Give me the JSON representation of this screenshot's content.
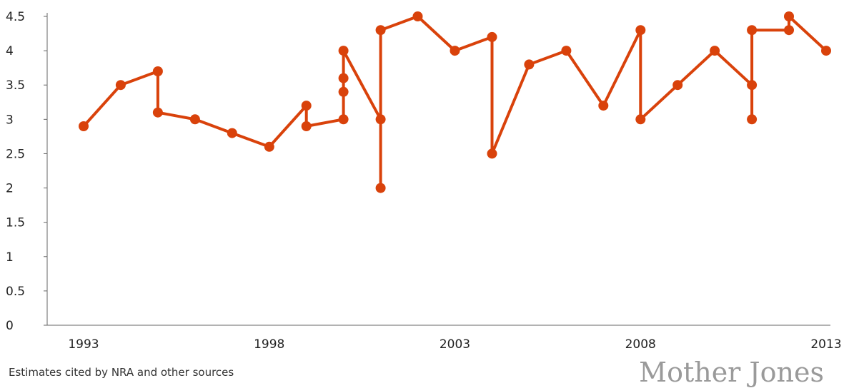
{
  "chart_data": {
    "type": "line",
    "title": "",
    "xlabel": "",
    "ylabel": "",
    "xlim": [
      1993,
      2013
    ],
    "ylim": [
      0,
      4.5
    ],
    "x_ticks": [
      "1993",
      "1998",
      "2003",
      "2008",
      "2013"
    ],
    "y_ticks": [
      "0",
      "0.5",
      "1",
      "1.5",
      "2",
      "2.5",
      "3",
      "3.5",
      "4",
      "4.5"
    ],
    "grid": false,
    "color": "#d9420b",
    "series": [
      {
        "x": [
          1993,
          1994,
          1995,
          1995,
          1996,
          1997,
          1998,
          1999,
          1999,
          2000,
          2000,
          2000,
          2000,
          2001,
          2001,
          2001,
          2002,
          2003,
          2004,
          2004,
          2005,
          2006,
          2007,
          2008,
          2008,
          2009,
          2010,
          2011,
          2011,
          2011,
          2012,
          2012,
          2013
        ],
        "y": [
          2.9,
          3.5,
          3.7,
          3.1,
          3.0,
          2.8,
          2.6,
          3.2,
          2.9,
          3.0,
          3.4,
          3.6,
          4.0,
          3.0,
          2.0,
          4.3,
          4.5,
          4.0,
          4.2,
          2.5,
          3.8,
          4.0,
          3.2,
          4.3,
          3.0,
          3.5,
          4.0,
          3.5,
          3.0,
          4.3,
          4.3,
          4.5,
          4.0
        ]
      }
    ]
  },
  "caption": "Estimates cited by NRA and other sources",
  "logo_text": "Mother Jones"
}
